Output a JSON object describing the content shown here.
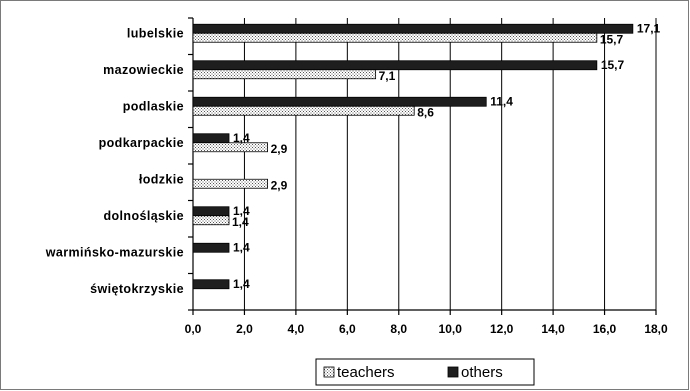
{
  "chart_data": {
    "type": "bar",
    "orientation": "horizontal",
    "title": "",
    "xlabel": "",
    "ylabel": "",
    "xlim": [
      0,
      18
    ],
    "x_ticks": [
      "0,0",
      "2,0",
      "4,0",
      "6,0",
      "8,0",
      "10,0",
      "12,0",
      "14,0",
      "16,0",
      "18,0"
    ],
    "grid": "vertical",
    "legend_position": "bottom",
    "categories": [
      "lubelskie",
      "mazowieckie",
      "podlaskie",
      "podkarpackie",
      "łodzkie",
      "dolnośląskie",
      "warmińsko-mazurskie",
      "świętokrzyskie"
    ],
    "series": [
      {
        "name": "others",
        "values": [
          17.1,
          15.7,
          11.4,
          1.4,
          null,
          1.4,
          1.4,
          1.4
        ],
        "labels": [
          "17,1",
          "15,7",
          "11,4",
          "1,4",
          "",
          "1,4",
          "1,4",
          "1,4"
        ],
        "color": "#1e1e1e"
      },
      {
        "name": "teachers",
        "values": [
          15.7,
          7.1,
          8.6,
          2.9,
          2.9,
          1.4,
          null,
          null
        ],
        "labels": [
          "15,7",
          "7,1",
          "8,6",
          "2,9",
          "2,9",
          "1,4",
          "",
          ""
        ],
        "color": "#dotted"
      }
    ],
    "legend": [
      "teachers",
      "others"
    ]
  }
}
